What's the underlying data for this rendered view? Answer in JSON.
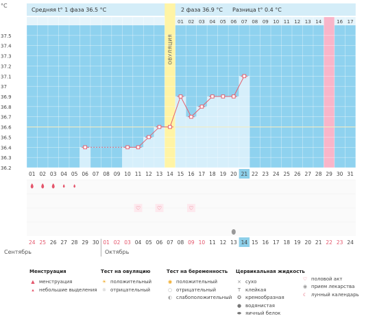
{
  "header": {
    "unit": "°C",
    "phase1": "Средняя t° 1 фаза 36.5 °C",
    "phase2": "2 фаза 36.9 °C",
    "diff": "Разница t° 0.4 °C",
    "ovulation_label": "ОВУЛЯЦИЯ"
  },
  "colors": {
    "plot_bg": "#8fd2ef",
    "header_bg": "#d4edf8",
    "column_fill": "#d6effb",
    "ovulation": "#fff4a5",
    "pink_day": "#f9b5c9",
    "line": "#e4606f",
    "today": "#8dcfe9",
    "coverline": "#f2ecc4"
  },
  "chart_data": {
    "type": "line",
    "title": "",
    "ylabel": "°C",
    "ylim": [
      36.2,
      37.6
    ],
    "yticks": [
      "37.5",
      "37.4",
      "37.3",
      "37.2",
      "37.1",
      "37",
      "36.9",
      "36.8",
      "36.7",
      "36.6",
      "36.5",
      "36.4",
      "36.3",
      "36.2"
    ],
    "cycle_days": [
      "01",
      "02",
      "03",
      "04",
      "05",
      "06",
      "07",
      "08",
      "09",
      "10",
      "11",
      "12",
      "13",
      "14",
      "15",
      "16",
      "17",
      "18",
      "19",
      "20",
      "21",
      "22",
      "23",
      "24",
      "25",
      "26",
      "27",
      "28",
      "29",
      "30",
      "31"
    ],
    "top_labels": [
      "",
      "",
      "",
      "",
      "",
      "",
      "",
      "",
      "",
      "",
      "",
      "",
      "",
      "",
      "01",
      "02",
      "03",
      "04",
      "05",
      "06",
      "07",
      "08",
      "09",
      "10",
      "11",
      "12",
      "13",
      "14",
      "15",
      "16",
      "17"
    ],
    "dates": [
      "24",
      "25",
      "26",
      "27",
      "28",
      "29",
      "30",
      "01",
      "02",
      "03",
      "04",
      "05",
      "06",
      "07",
      "08",
      "09",
      "10",
      "11",
      "12",
      "13",
      "14",
      "15",
      "16",
      "17",
      "18",
      "19",
      "20",
      "21",
      "22",
      "23",
      "24"
    ],
    "red_dates": [
      1,
      2,
      8,
      9,
      10,
      16,
      17,
      29,
      30
    ],
    "today_date_index": 21,
    "today_day_index": 21,
    "pink_day_index": 29,
    "ovulation_day_index": 14,
    "coverline": 36.6,
    "temperatures": [
      {
        "day": 6,
        "value": 36.4
      },
      {
        "day": 10,
        "value": 36.4
      },
      {
        "day": 11,
        "value": 36.4
      },
      {
        "day": 12,
        "value": 36.5
      },
      {
        "day": 13,
        "value": 36.6
      },
      {
        "day": 14,
        "value": 36.6
      },
      {
        "day": 15,
        "value": 36.9
      },
      {
        "day": 16,
        "value": 36.7
      },
      {
        "day": 17,
        "value": 36.8
      },
      {
        "day": 18,
        "value": 36.9
      },
      {
        "day": 19,
        "value": 36.9
      },
      {
        "day": 20,
        "value": 36.9
      },
      {
        "day": 21,
        "value": 37.1
      }
    ],
    "dotted_gap": [
      6,
      10
    ],
    "menstruation_days": [
      1,
      2,
      3,
      4,
      5
    ],
    "menstruation_big": [
      1,
      2,
      3
    ],
    "intercourse_days": [
      11,
      13,
      16
    ],
    "mucus_egg_white_day": 20
  },
  "months": {
    "september": "Сентябрь",
    "october": "Октябрь"
  },
  "legend": {
    "menstruation": {
      "title": "Менструация",
      "items": [
        {
          "icon": "menstruation-icon",
          "label": "менструация"
        },
        {
          "icon": "spotting-icon",
          "label": "небольшие выделения"
        }
      ]
    },
    "ovulation_test": {
      "title": "Тест на овуляцию",
      "items": [
        {
          "icon": "positive-ovulation-icon",
          "label": "положительный"
        },
        {
          "icon": "negative-ovulation-icon",
          "label": "отрицательный"
        }
      ]
    },
    "pregnancy_test": {
      "title": "Тест на беременность",
      "items": [
        {
          "icon": "positive-pregnancy-icon",
          "label": "положительный"
        },
        {
          "icon": "negative-pregnancy-icon",
          "label": "отрицательный"
        },
        {
          "icon": "weak-pregnancy-icon",
          "label": "слабоположительный"
        }
      ]
    },
    "mucus": {
      "title": "Цервикальная жидкость",
      "items": [
        {
          "icon": "dry-icon",
          "label": "сухо"
        },
        {
          "icon": "sticky-icon",
          "label": "клейкая"
        },
        {
          "icon": "creamy-icon",
          "label": "кремообразная"
        },
        {
          "icon": "watery-icon",
          "label": "водянистая"
        },
        {
          "icon": "egg-white-icon",
          "label": "яичный белок"
        }
      ]
    },
    "other": {
      "items": [
        {
          "icon": "heart-icon",
          "label": "половой акт"
        },
        {
          "icon": "pill-icon",
          "label": "прием лекарства"
        },
        {
          "icon": "moon-icon",
          "label": "лунный календарь"
        }
      ]
    }
  }
}
